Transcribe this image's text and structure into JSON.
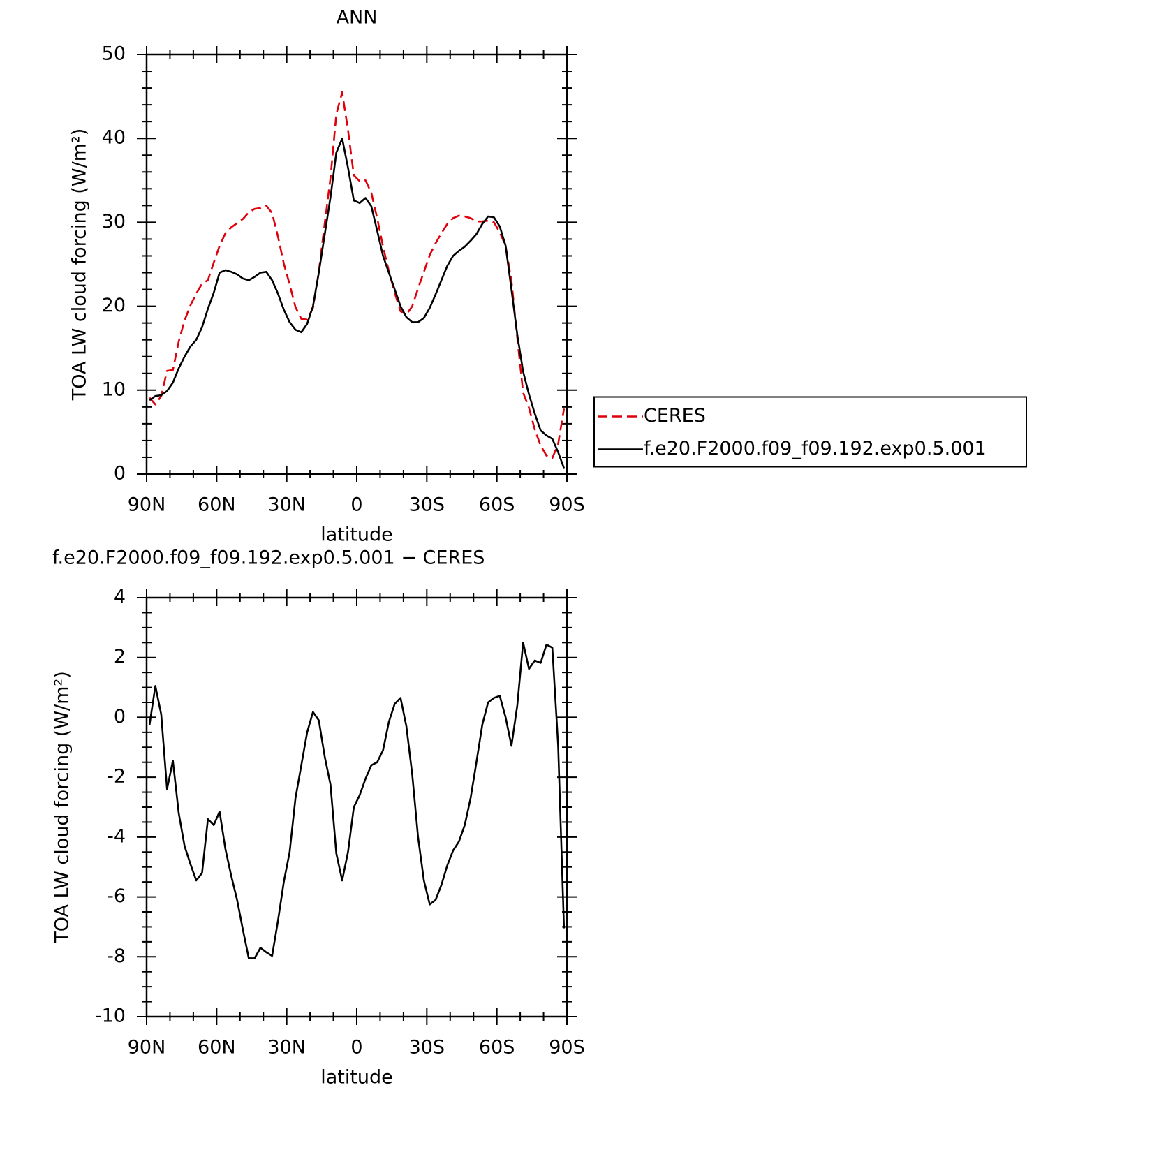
{
  "chart_data": [
    {
      "type": "line",
      "title": "ANN",
      "xlabel": "latitude",
      "ylabel": "TOA LW cloud forcing (W/m²)",
      "x": [
        88.75,
        86.25,
        83.75,
        81.25,
        78.75,
        76.25,
        73.75,
        71.25,
        68.75,
        66.25,
        63.75,
        61.25,
        58.75,
        56.25,
        53.75,
        51.25,
        48.75,
        46.25,
        43.75,
        41.25,
        38.75,
        36.25,
        33.75,
        31.25,
        28.75,
        26.25,
        23.75,
        21.25,
        18.75,
        16.25,
        13.75,
        11.25,
        8.75,
        6.25,
        3.75,
        1.25,
        -1.25,
        -3.75,
        -6.25,
        -8.75,
        -11.25,
        -13.75,
        -16.25,
        -18.75,
        -21.25,
        -23.75,
        -26.25,
        -28.75,
        -31.25,
        -33.75,
        -36.25,
        -38.75,
        -41.25,
        -43.75,
        -46.25,
        -48.75,
        -51.25,
        -53.75,
        -56.25,
        -58.75,
        -61.25,
        -63.75,
        -66.25,
        -68.75,
        -71.25,
        -73.75,
        -76.25,
        -78.75,
        -81.25,
        -83.75,
        -86.25,
        -88.75
      ],
      "series": [
        {
          "name": "CERES",
          "color": "#e0000b",
          "dashed": true,
          "values": [
            9.1,
            8.3,
            9.3,
            12.3,
            12.4,
            15.8,
            18.3,
            20.1,
            21.5,
            22.7,
            23.1,
            25.2,
            27.2,
            28.7,
            29.4,
            29.9,
            30.4,
            31.2,
            31.6,
            31.7,
            32.0,
            31.1,
            28.3,
            25.1,
            22.6,
            19.9,
            18.5,
            18.4,
            19.8,
            24.1,
            29.8,
            35.3,
            42.9,
            45.5,
            41.0,
            35.6,
            34.9,
            35.0,
            33.5,
            30.5,
            27.1,
            24.2,
            21.6,
            19.4,
            19.0,
            20.0,
            22.1,
            24.1,
            26.1,
            27.5,
            28.7,
            29.8,
            30.5,
            30.8,
            30.7,
            30.5,
            30.1,
            30.1,
            30.2,
            30.0,
            28.8,
            27.2,
            23.0,
            16.2,
            9.7,
            7.9,
            5.3,
            3.4,
            2.2,
            1.9,
            3.6,
            7.8
          ]
        },
        {
          "name": "f.e20.F2000.f09_f09.192.exp0.5.001",
          "color": "#000000",
          "dashed": false,
          "values": [
            8.8,
            9.3,
            9.4,
            9.9,
            10.9,
            12.6,
            14.0,
            15.2,
            16.0,
            17.5,
            19.7,
            21.6,
            24.0,
            24.3,
            24.1,
            23.8,
            23.3,
            23.1,
            23.5,
            24.0,
            24.1,
            23.1,
            21.5,
            19.6,
            18.1,
            17.2,
            16.9,
            17.9,
            20.0,
            24.0,
            28.5,
            33.0,
            38.3,
            40.0,
            36.5,
            32.6,
            32.3,
            32.9,
            31.9,
            29.0,
            26.0,
            24.0,
            22.0,
            20.0,
            18.7,
            18.1,
            18.1,
            18.6,
            19.8,
            21.4,
            23.1,
            24.8,
            26.0,
            26.6,
            27.1,
            27.8,
            28.6,
            29.8,
            30.7,
            30.6,
            29.5,
            27.2,
            22.0,
            16.6,
            12.2,
            9.5,
            7.2,
            5.2,
            4.6,
            4.2,
            2.6,
            0.7
          ]
        }
      ],
      "xlim": [
        90,
        -90
      ],
      "xticks": [
        {
          "value": 90,
          "label": "90N"
        },
        {
          "value": 60,
          "label": "60N"
        },
        {
          "value": 30,
          "label": "30N"
        },
        0,
        {
          "value": -30,
          "label": "30S"
        },
        {
          "value": -60,
          "label": "60S"
        },
        {
          "value": -90,
          "label": "90S"
        }
      ],
      "ylim": [
        0,
        50
      ],
      "yticks": [
        0,
        10,
        20,
        30,
        40,
        50
      ],
      "legend": "outside-right"
    },
    {
      "type": "line",
      "title": "f.e20.F2000.f09_f09.192.exp0.5.001 − CERES",
      "xlabel": "latitude",
      "ylabel": "TOA LW cloud forcing (W/m²)",
      "x": [
        88.75,
        86.25,
        83.75,
        81.25,
        78.75,
        76.25,
        73.75,
        71.25,
        68.75,
        66.25,
        63.75,
        61.25,
        58.75,
        56.25,
        53.75,
        51.25,
        48.75,
        46.25,
        43.75,
        41.25,
        38.75,
        36.25,
        33.75,
        31.25,
        28.75,
        26.25,
        23.75,
        21.25,
        18.75,
        16.25,
        13.75,
        11.25,
        8.75,
        6.25,
        3.75,
        1.25,
        -1.25,
        -3.75,
        -6.25,
        -8.75,
        -11.25,
        -13.75,
        -16.25,
        -18.75,
        -21.25,
        -23.75,
        -26.25,
        -28.75,
        -31.25,
        -33.75,
        -36.25,
        -38.75,
        -41.25,
        -43.75,
        -46.25,
        -48.75,
        -51.25,
        -53.75,
        -56.25,
        -58.75,
        -61.25,
        -63.75,
        -66.25,
        -68.75,
        -71.25,
        -73.75,
        -76.25,
        -78.75,
        -81.25,
        -83.75,
        -86.25,
        -88.75
      ],
      "values": [
        -0.25,
        1.05,
        0.1,
        -2.4,
        -1.45,
        -3.2,
        -4.3,
        -4.9,
        -5.45,
        -5.2,
        -3.4,
        -3.6,
        -3.15,
        -4.4,
        -5.3,
        -6.1,
        -7.1,
        -8.05,
        -8.05,
        -7.7,
        -7.85,
        -7.97,
        -6.8,
        -5.5,
        -4.5,
        -2.7,
        -1.6,
        -0.5,
        0.18,
        -0.1,
        -1.3,
        -2.25,
        -4.55,
        -5.45,
        -4.5,
        -3.0,
        -2.6,
        -2.05,
        -1.6,
        -1.5,
        -1.1,
        -0.15,
        0.45,
        0.65,
        -0.3,
        -1.9,
        -4.0,
        -5.45,
        -6.25,
        -6.1,
        -5.6,
        -4.95,
        -4.45,
        -4.15,
        -3.6,
        -2.7,
        -1.5,
        -0.25,
        0.5,
        0.65,
        0.72,
        0.0,
        -0.95,
        0.4,
        2.5,
        1.62,
        1.9,
        1.82,
        2.43,
        2.33,
        -0.95,
        -7.05
      ],
      "color": "#000000",
      "xlim": [
        90,
        -90
      ],
      "xticks": [
        {
          "value": 90,
          "label": "90N"
        },
        {
          "value": 60,
          "label": "60N"
        },
        {
          "value": 30,
          "label": "30N"
        },
        0,
        {
          "value": -30,
          "label": "30S"
        },
        {
          "value": -60,
          "label": "60S"
        },
        {
          "value": -90,
          "label": "90S"
        }
      ],
      "ylim": [
        -10,
        4
      ],
      "yticks": [
        -10,
        -8,
        -6,
        -4,
        -2,
        0,
        2,
        4
      ]
    }
  ]
}
